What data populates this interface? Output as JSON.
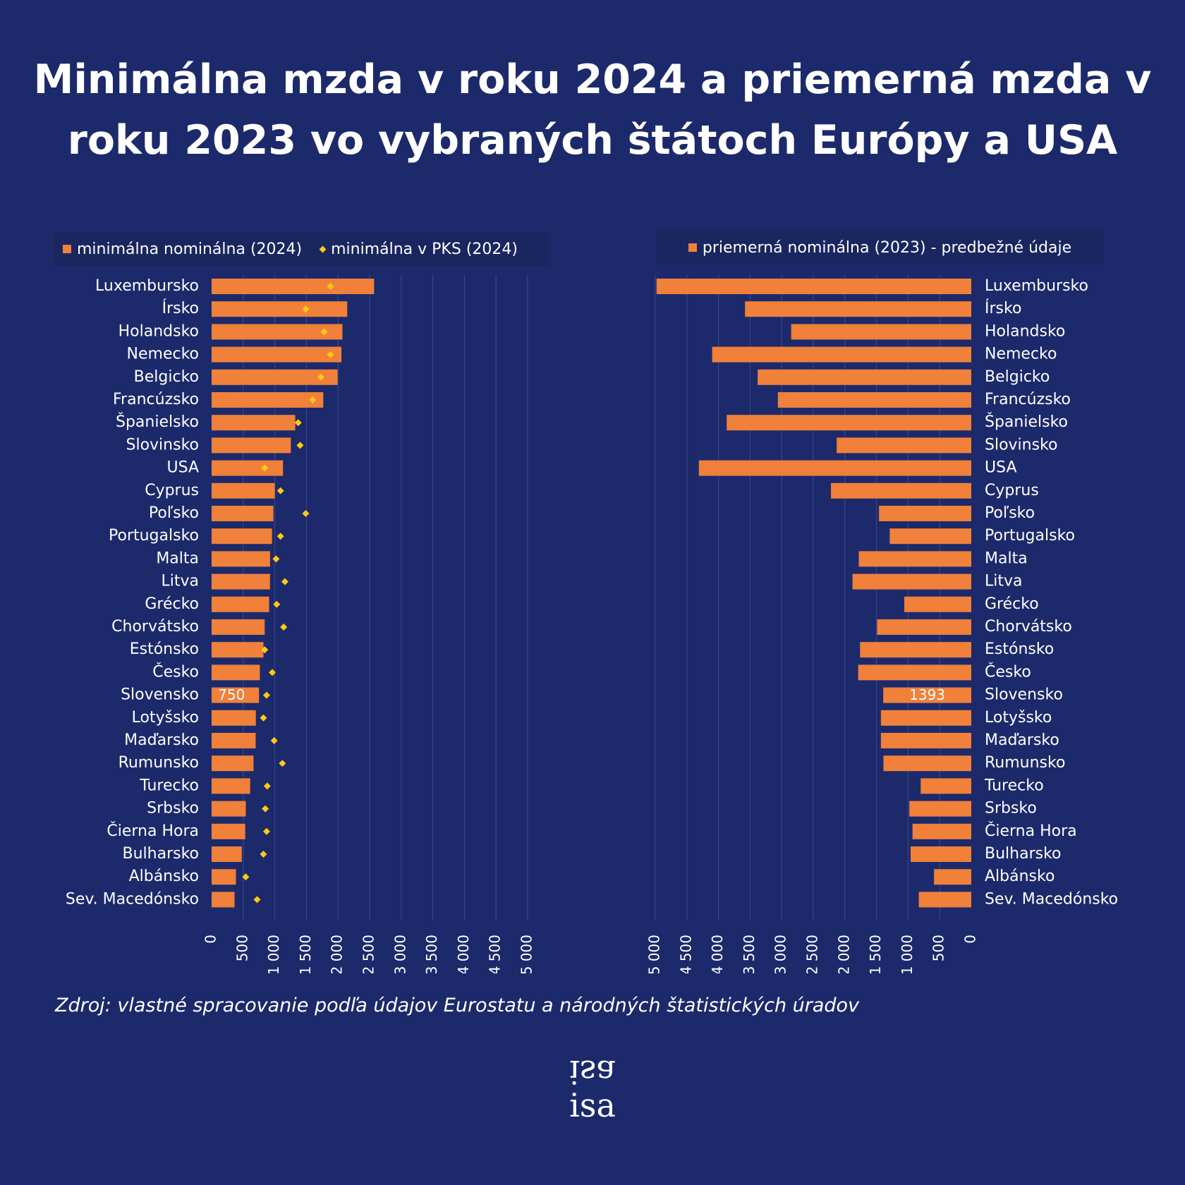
{
  "title": "Minimálna mzda v roku 2024 a priemerná mzda v roku 2023 vo vybraných štátoch Európy a USA",
  "legend_left": {
    "series1": "minimálna nominálna (2024)",
    "series2": "minimálna v PKS (2024)"
  },
  "legend_right": {
    "series1": "priemerná nominálna (2023) - predbežné údaje"
  },
  "source": "Zdroj: vlastné spracovanie podľa údajov Eurostatu a národných štatistických úradov",
  "logo": "isa",
  "colors": {
    "background": "#1c2a6b",
    "bar": "#f0803a",
    "marker": "#ffc915",
    "grid": "#3d4a8a"
  },
  "chart_data": [
    {
      "type": "bar",
      "orientation": "horizontal",
      "categories": [
        "Luxembursko",
        "Írsko",
        "Holandsko",
        "Nemecko",
        "Belgicko",
        "Francúzsko",
        "Španielsko",
        "Slovinsko",
        "USA",
        "Cyprus",
        "Poľsko",
        "Portugalsko",
        "Malta",
        "Litva",
        "Grécko",
        "Chorvátsko",
        "Estónsko",
        "Česko",
        "Slovensko",
        "Lotyšsko",
        "Maďarsko",
        "Rumunsko",
        "Turecko",
        "Srbsko",
        "Čierna Hora",
        "Bulharsko",
        "Albánsko",
        "Sev. Macedónsko"
      ],
      "series": [
        {
          "name": "minimálna nominálna (2024)",
          "kind": "bar",
          "values": [
            2571,
            2146,
            2070,
            2054,
            1994,
            1767,
            1323,
            1254,
            1130,
            1000,
            978,
            956,
            925,
            924,
            910,
            840,
            820,
            764,
            750,
            700,
            697,
            663,
            610,
            541,
            532,
            477,
            385,
            363
          ]
        },
        {
          "name": "minimálna v PKS (2024)",
          "kind": "marker",
          "values": [
            1880,
            1490,
            1780,
            1880,
            1730,
            1600,
            1370,
            1400,
            840,
            1090,
            1490,
            1090,
            1020,
            1160,
            1030,
            1140,
            840,
            960,
            870,
            820,
            990,
            1120,
            880,
            850,
            870,
            820,
            540,
            720
          ]
        }
      ],
      "data_labels": {
        "Slovensko": "750"
      },
      "xlim": [
        0,
        5000
      ],
      "ticks": [
        "0",
        "500",
        "1 000",
        "1 500",
        "2 000",
        "2 500",
        "3 000",
        "3 500",
        "4 000",
        "4 500",
        "5 000"
      ]
    },
    {
      "type": "bar",
      "orientation": "horizontal",
      "reversed": true,
      "categories": [
        "Luxembursko",
        "Írsko",
        "Holandsko",
        "Nemecko",
        "Belgicko",
        "Francúzsko",
        "Španielsko",
        "Slovinsko",
        "USA",
        "Cyprus",
        "Poľsko",
        "Portugalsko",
        "Malta",
        "Litva",
        "Grécko",
        "Chorvátsko",
        "Estónsko",
        "Česko",
        "Slovensko",
        "Lotyšsko",
        "Maďarsko",
        "Rumunsko",
        "Turecko",
        "Srbsko",
        "Čierna Hora",
        "Bulharsko",
        "Albánsko",
        "Sev. Macedónsko"
      ],
      "series": [
        {
          "name": "priemerná nominálna (2023) - predbežné údaje",
          "kind": "bar",
          "values": [
            4980,
            3580,
            2850,
            4100,
            3380,
            3060,
            3870,
            2130,
            4310,
            2220,
            1460,
            1290,
            1780,
            1880,
            1060,
            1490,
            1760,
            1790,
            1393,
            1430,
            1430,
            1390,
            800,
            980,
            930,
            960,
            590,
            830
          ]
        }
      ],
      "data_labels": {
        "Slovensko": "1393"
      },
      "xlim": [
        0,
        5000
      ],
      "ticks": [
        "0",
        "500",
        "1 000",
        "1 500",
        "2 000",
        "2 500",
        "3 000",
        "3 500",
        "4 000",
        "4 500",
        "5 000"
      ]
    }
  ]
}
